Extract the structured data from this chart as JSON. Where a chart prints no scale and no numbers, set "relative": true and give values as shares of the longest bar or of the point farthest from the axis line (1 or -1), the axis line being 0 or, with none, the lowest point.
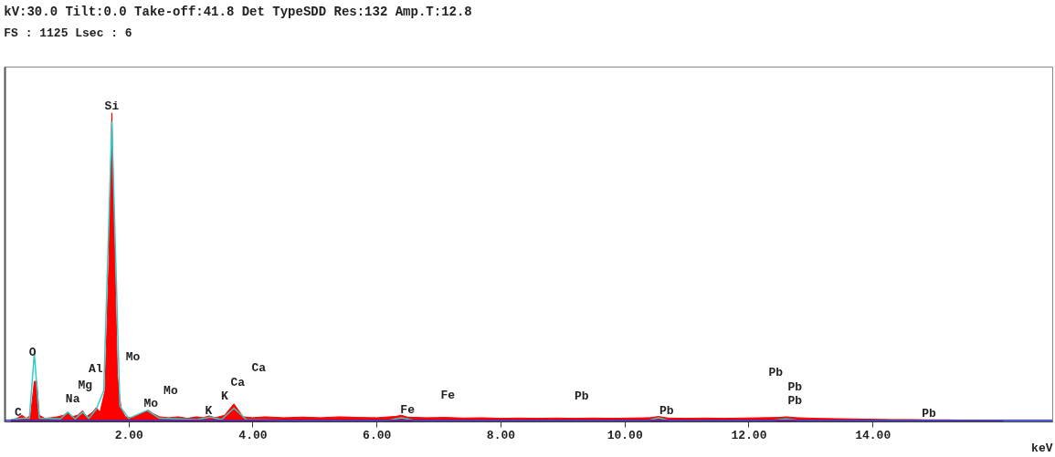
{
  "chart_data": {
    "type": "area",
    "title": "kV:30.0 Tilt:0.0 Take-off:41.8  Det TypeSDD Res:132 Amp.T:12.8",
    "subtitle": "FS : 1125  Lsec : 6",
    "xlabel": "keV",
    "relative": true,
    "xlim": [
      0,
      16.9
    ],
    "xticks": [
      {
        "value": 2,
        "label": "2.00"
      },
      {
        "value": 4,
        "label": "4.00"
      },
      {
        "value": 6,
        "label": "6.00"
      },
      {
        "value": 8,
        "label": "8.00"
      },
      {
        "value": 10,
        "label": "10.00"
      },
      {
        "value": 12,
        "label": "12.00"
      },
      {
        "value": 14,
        "label": "14.00"
      }
    ],
    "grid": false,
    "series": [
      {
        "color": "#ff0000",
        "x": [
          0.1,
          0.2,
          0.28,
          0.35,
          0.42,
          0.48,
          0.52,
          0.56,
          0.65,
          0.75,
          0.85,
          0.95,
          1.02,
          1.08,
          1.18,
          1.26,
          1.32,
          1.42,
          1.48,
          1.54,
          1.62,
          1.68,
          1.73,
          1.77,
          1.82,
          1.88,
          1.95,
          2.05,
          2.15,
          2.25,
          2.32,
          2.4,
          2.5,
          2.65,
          2.8,
          2.95,
          3.1,
          3.2,
          3.3,
          3.4,
          3.55,
          3.65,
          3.7,
          3.76,
          3.85,
          4.0,
          4.2,
          4.5,
          4.8,
          5.1,
          5.4,
          5.7,
          6.0,
          6.3,
          6.4,
          6.5,
          6.8,
          7.1,
          7.4,
          7.7,
          8.0,
          8.3,
          8.6,
          8.9,
          9.2,
          9.5,
          9.8,
          10.1,
          10.4,
          10.55,
          10.7,
          11.0,
          11.3,
          11.6,
          11.9,
          12.2,
          12.5,
          12.6,
          12.8,
          13.1,
          13.4,
          13.7,
          14.0,
          14.3,
          14.6,
          14.9,
          15.2,
          15.5,
          15.8,
          16.1
        ],
        "values": [
          0.005,
          0.01,
          0.02,
          0.01,
          0.02,
          0.13,
          0.13,
          0.02,
          0.01,
          0.012,
          0.015,
          0.02,
          0.03,
          0.015,
          0.02,
          0.035,
          0.015,
          0.03,
          0.045,
          0.03,
          0.1,
          0.5,
          1.0,
          0.6,
          0.15,
          0.04,
          0.015,
          0.012,
          0.02,
          0.03,
          0.036,
          0.025,
          0.015,
          0.012,
          0.015,
          0.01,
          0.015,
          0.012,
          0.018,
          0.012,
          0.02,
          0.045,
          0.057,
          0.04,
          0.015,
          0.012,
          0.015,
          0.012,
          0.014,
          0.012,
          0.015,
          0.013,
          0.012,
          0.016,
          0.02,
          0.014,
          0.012,
          0.013,
          0.011,
          0.012,
          0.01,
          0.011,
          0.01,
          0.011,
          0.01,
          0.011,
          0.01,
          0.011,
          0.012,
          0.016,
          0.011,
          0.01,
          0.011,
          0.01,
          0.011,
          0.012,
          0.013,
          0.015,
          0.012,
          0.01,
          0.009,
          0.008,
          0.007,
          0.006,
          0.006,
          0.005,
          0.005,
          0.004,
          0.003,
          0.002
        ]
      },
      {
        "type": "line",
        "color": "#33cccc",
        "x": [
          0.1,
          0.28,
          0.4,
          0.48,
          0.56,
          0.9,
          1.02,
          1.14,
          1.26,
          1.36,
          1.48,
          1.6,
          1.73,
          1.86,
          2.0,
          2.3,
          2.5,
          3.1,
          3.32,
          3.5,
          3.7,
          3.9,
          4.5,
          6.2,
          6.4,
          6.6,
          10.4,
          10.55,
          10.7,
          12.4,
          12.6,
          12.8,
          16.9
        ],
        "values": [
          0.005,
          0.01,
          0.01,
          0.22,
          0.01,
          0.008,
          0.03,
          0.008,
          0.03,
          0.01,
          0.04,
          0.1,
          0.97,
          0.05,
          0.01,
          0.036,
          0.01,
          0.006,
          0.014,
          0.006,
          0.043,
          0.006,
          0.004,
          0.004,
          0.012,
          0.004,
          0.004,
          0.012,
          0.004,
          0.004,
          0.008,
          0.004,
          0.004
        ]
      },
      {
        "type": "line",
        "color": "#3333cc",
        "x": [
          0,
          16.9
        ],
        "values": [
          0.004,
          0.004
        ]
      }
    ],
    "annotations": [
      "Si",
      "C",
      "O",
      "Na",
      "Mg",
      "Al",
      "Mo",
      "Mo",
      "Mo",
      "K",
      "K",
      "Ca",
      "Ca",
      "Fe",
      "Fe",
      "Pb",
      "Pb",
      "Pb",
      "Pb",
      "Pb",
      "Pb"
    ]
  }
}
